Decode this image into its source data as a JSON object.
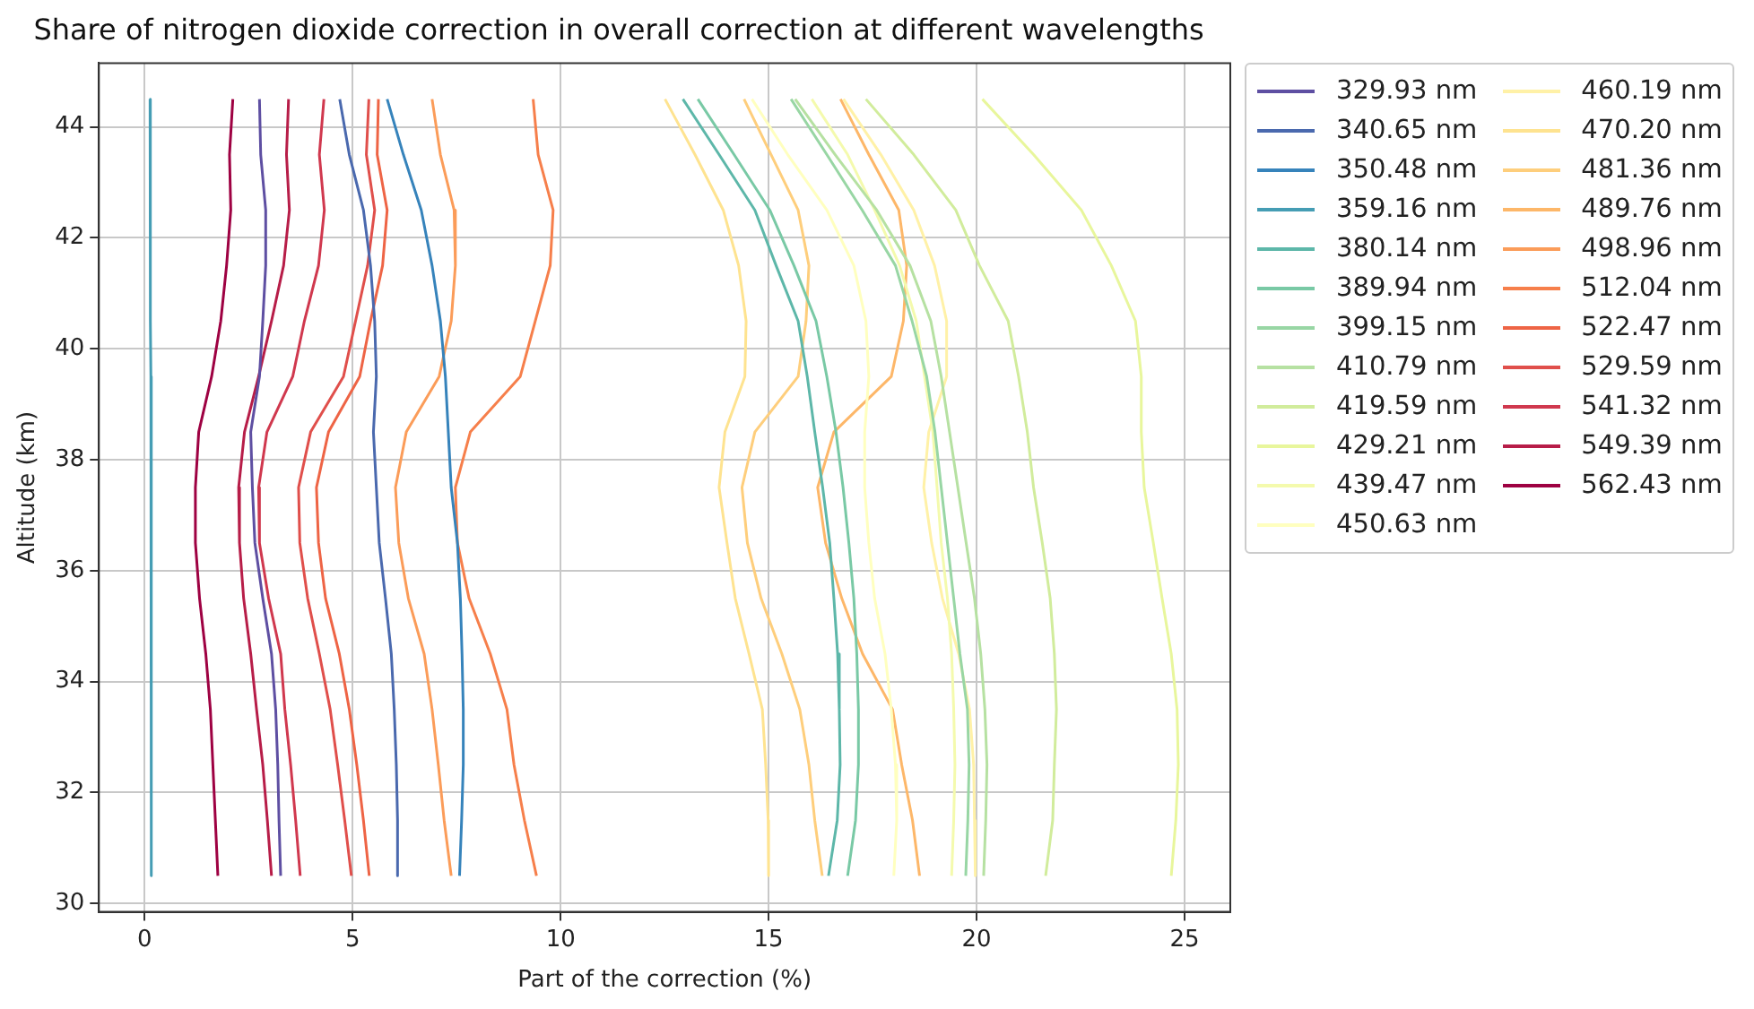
{
  "chart_data": {
    "type": "line",
    "title": "Share of nitrogen dioxide correction in overall correction at different wavelengths",
    "xlabel": "Part of the correction (%)",
    "ylabel": "Altitude (km)",
    "xlim": [
      -1.1,
      26.1
    ],
    "ylim": [
      29.85,
      45.15
    ],
    "xticks": [
      0,
      5,
      10,
      15,
      20,
      25
    ],
    "yticks": [
      30,
      32,
      34,
      36,
      38,
      40,
      42,
      44
    ],
    "grid": true,
    "legend": "right",
    "marker": "none",
    "line_style": "solid",
    "series": [
      {
        "name": "329.93 nm",
        "color": "#5e4fa2",
        "x": [
          2.76,
          2.79,
          2.91,
          2.91,
          2.84,
          2.76,
          2.55,
          2.59,
          2.65,
          2.84,
          3.05,
          3.15,
          3.2,
          3.23,
          3.27
        ],
        "values": [
          44.5,
          43.5,
          42.5,
          41.5,
          40.5,
          39.5,
          38.5,
          37.5,
          36.5,
          35.5,
          34.5,
          33.5,
          32.5,
          31.5,
          30.5
        ]
      },
      {
        "name": "340.65 nm",
        "color": "#4a69ae",
        "x": [
          4.69,
          4.92,
          5.26,
          5.43,
          5.53,
          5.57,
          5.5,
          5.57,
          5.64,
          5.79,
          5.93,
          6.0,
          6.05,
          6.08,
          6.08
        ],
        "values": [
          44.5,
          43.5,
          42.5,
          41.5,
          40.5,
          39.5,
          38.5,
          37.5,
          36.5,
          35.5,
          34.5,
          33.5,
          32.5,
          31.5,
          30.5
        ]
      },
      {
        "name": "350.48 nm",
        "color": "#3683bb",
        "x": [
          5.83,
          6.22,
          6.65,
          6.91,
          7.11,
          7.23,
          7.3,
          7.37,
          7.52,
          7.59,
          7.63,
          7.66,
          7.66,
          7.62,
          7.57
        ],
        "values": [
          44.5,
          43.5,
          42.5,
          41.5,
          40.5,
          39.5,
          38.5,
          37.5,
          36.5,
          35.5,
          34.5,
          33.5,
          32.5,
          31.5,
          30.5
        ]
      },
      {
        "name": "359.16 nm",
        "color": "#459db4",
        "x": [
          0.13,
          0.13,
          0.14,
          0.14,
          0.14,
          0.15,
          0.15,
          0.15,
          0.15,
          0.16,
          0.16,
          0.16,
          0.17,
          0.17,
          0.17
        ],
        "values": [
          44.5,
          43.5,
          42.5,
          41.5,
          40.5,
          39.5,
          38.5,
          37.5,
          36.5,
          35.5,
          34.5,
          33.5,
          32.5,
          31.5,
          30.5
        ]
      },
      {
        "name": "380.14 nm",
        "color": "#5db7a9",
        "x": [
          12.94,
          13.81,
          14.67,
          15.18,
          15.71,
          15.93,
          16.11,
          16.3,
          16.47,
          16.57,
          16.66,
          16.7,
          16.72,
          16.65,
          16.44
        ],
        "values": [
          44.5,
          43.5,
          42.5,
          41.5,
          40.5,
          39.5,
          38.5,
          37.5,
          36.5,
          35.5,
          34.5,
          33.5,
          32.5,
          31.5,
          30.5
        ]
      },
      {
        "name": "389.94 nm",
        "color": "#79c9a5",
        "x": [
          13.3,
          14.17,
          15.03,
          15.61,
          16.14,
          16.4,
          16.62,
          16.79,
          16.93,
          17.05,
          17.12,
          17.16,
          17.16,
          17.09,
          16.9
        ],
        "values": [
          44.5,
          43.5,
          42.5,
          41.5,
          40.5,
          39.5,
          38.5,
          37.5,
          36.5,
          35.5,
          34.5,
          33.5,
          32.5,
          31.5,
          30.5
        ]
      },
      {
        "name": "399.15 nm",
        "color": "#98d6a4",
        "x": [
          15.54,
          16.4,
          17.25,
          18.05,
          18.45,
          18.8,
          19.0,
          19.15,
          19.3,
          19.45,
          19.6,
          19.78,
          19.82,
          19.79,
          19.74
        ],
        "values": [
          44.5,
          43.5,
          42.5,
          41.5,
          40.5,
          39.5,
          38.5,
          37.5,
          36.5,
          35.5,
          34.5,
          33.5,
          32.5,
          31.5,
          30.5
        ]
      },
      {
        "name": "410.79 nm",
        "color": "#b6e1a2",
        "x": [
          15.64,
          16.6,
          17.6,
          18.4,
          18.9,
          19.15,
          19.35,
          19.55,
          19.75,
          19.95,
          20.1,
          20.2,
          20.25,
          20.22,
          20.17
        ],
        "values": [
          44.5,
          43.5,
          42.5,
          41.5,
          40.5,
          39.5,
          38.5,
          37.5,
          36.5,
          35.5,
          34.5,
          33.5,
          32.5,
          31.5,
          30.5
        ]
      },
      {
        "name": "419.59 nm",
        "color": "#d1ec9c",
        "x": [
          17.34,
          18.49,
          19.5,
          20.07,
          20.76,
          21.01,
          21.22,
          21.37,
          21.58,
          21.77,
          21.87,
          21.92,
          21.87,
          21.83,
          21.66
        ],
        "values": [
          44.5,
          43.5,
          42.5,
          41.5,
          40.5,
          39.5,
          38.5,
          37.5,
          36.5,
          35.5,
          34.5,
          33.5,
          32.5,
          31.5,
          30.5
        ]
      },
      {
        "name": "429.21 nm",
        "color": "#e8f69c",
        "x": [
          20.14,
          21.37,
          22.52,
          23.24,
          23.82,
          23.96,
          23.96,
          24.03,
          24.25,
          24.46,
          24.68,
          24.82,
          24.85,
          24.79,
          24.68
        ],
        "values": [
          44.5,
          43.5,
          42.5,
          41.5,
          40.5,
          39.5,
          38.5,
          37.5,
          36.5,
          35.5,
          34.5,
          33.5,
          32.5,
          31.5,
          30.5
        ]
      },
      {
        "name": "439.47 nm",
        "color": "#f4faad",
        "x": [
          16.04,
          16.9,
          17.55,
          18.15,
          18.55,
          18.75,
          18.95,
          19.05,
          19.15,
          19.3,
          19.4,
          19.45,
          19.48,
          19.45,
          19.4
        ],
        "values": [
          44.5,
          43.5,
          42.5,
          41.5,
          40.5,
          39.5,
          38.5,
          37.5,
          36.5,
          35.5,
          34.5,
          33.5,
          32.5,
          31.5,
          30.5
        ]
      },
      {
        "name": "450.63 nm",
        "color": "#ffffbf",
        "x": [
          14.6,
          15.46,
          16.4,
          17.05,
          17.34,
          17.41,
          17.31,
          17.31,
          17.41,
          17.55,
          17.8,
          17.95,
          18.05,
          18.08,
          18.01
        ],
        "values": [
          44.5,
          43.5,
          42.5,
          41.5,
          40.5,
          39.5,
          38.5,
          37.5,
          36.5,
          35.5,
          34.5,
          33.5,
          32.5,
          31.5,
          30.5
        ]
      },
      {
        "name": "460.19 nm",
        "color": "#fff1a7",
        "x": [
          16.8,
          17.7,
          18.49,
          18.99,
          19.28,
          19.28,
          18.85,
          18.73,
          18.92,
          19.18,
          19.57,
          19.83,
          19.93,
          19.95,
          19.97
        ],
        "values": [
          44.5,
          43.5,
          42.5,
          41.5,
          40.5,
          39.5,
          38.5,
          37.5,
          36.5,
          35.5,
          34.5,
          33.5,
          32.5,
          31.5,
          30.5
        ]
      },
      {
        "name": "470.20 nm",
        "color": "#fee390",
        "x": [
          12.51,
          13.23,
          13.91,
          14.28,
          14.46,
          14.43,
          13.95,
          13.81,
          14.0,
          14.2,
          14.53,
          14.85,
          14.93,
          14.99,
          15.0
        ],
        "values": [
          44.5,
          43.5,
          42.5,
          41.5,
          40.5,
          39.5,
          38.5,
          37.5,
          36.5,
          35.5,
          34.5,
          33.5,
          32.5,
          31.5,
          30.5
        ]
      },
      {
        "name": "481.36 nm",
        "color": "#fece7c",
        "x": [
          14.41,
          15.06,
          15.71,
          15.97,
          15.9,
          15.71,
          14.67,
          14.36,
          14.49,
          14.82,
          15.32,
          15.75,
          15.97,
          16.11,
          16.29
        ],
        "values": [
          44.5,
          43.5,
          42.5,
          41.5,
          40.5,
          39.5,
          38.5,
          37.5,
          36.5,
          35.5,
          34.5,
          33.5,
          32.5,
          31.5,
          30.5
        ]
      },
      {
        "name": "489.76 nm",
        "color": "#fdb769",
        "x": [
          16.73,
          17.41,
          18.13,
          18.32,
          18.24,
          17.95,
          16.57,
          16.18,
          16.37,
          16.76,
          17.26,
          17.98,
          18.2,
          18.46,
          18.63
        ],
        "values": [
          44.5,
          43.5,
          42.5,
          41.5,
          40.5,
          39.5,
          38.5,
          37.5,
          36.5,
          35.5,
          34.5,
          33.5,
          32.5,
          31.5,
          30.5
        ]
      },
      {
        "name": "498.96 nm",
        "color": "#fb9c59",
        "x": [
          6.91,
          7.11,
          7.44,
          7.47,
          7.37,
          7.08,
          6.29,
          6.03,
          6.11,
          6.34,
          6.72,
          6.91,
          7.06,
          7.2,
          7.37
        ],
        "values": [
          44.5,
          43.5,
          42.5,
          41.5,
          40.5,
          39.5,
          38.5,
          37.5,
          36.5,
          35.5,
          34.5,
          33.5,
          32.5,
          31.5,
          30.5
        ]
      },
      {
        "name": "512.04 nm",
        "color": "#f67f4b",
        "x": [
          9.34,
          9.46,
          9.82,
          9.75,
          9.39,
          9.03,
          7.83,
          7.47,
          7.52,
          7.8,
          8.31,
          8.71,
          8.88,
          9.13,
          9.42
        ],
        "values": [
          44.5,
          43.5,
          42.5,
          41.5,
          40.5,
          39.5,
          38.5,
          37.5,
          36.5,
          35.5,
          34.5,
          33.5,
          32.5,
          31.5,
          30.5
        ]
      },
      {
        "name": "522.47 nm",
        "color": "#ee6445",
        "x": [
          5.62,
          5.59,
          5.83,
          5.72,
          5.43,
          5.17,
          4.42,
          4.13,
          4.18,
          4.35,
          4.68,
          4.92,
          5.1,
          5.26,
          5.4
        ],
        "values": [
          44.5,
          43.5,
          42.5,
          41.5,
          40.5,
          39.5,
          38.5,
          37.5,
          36.5,
          35.5,
          34.5,
          33.5,
          32.5,
          31.5,
          30.5
        ]
      },
      {
        "name": "529.59 nm",
        "color": "#e04f4b",
        "x": [
          5.39,
          5.33,
          5.53,
          5.36,
          5.07,
          4.78,
          3.99,
          3.7,
          3.73,
          3.92,
          4.2,
          4.46,
          4.64,
          4.81,
          4.97
        ],
        "values": [
          44.5,
          43.5,
          42.5,
          41.5,
          40.5,
          39.5,
          38.5,
          37.5,
          36.5,
          35.5,
          34.5,
          33.5,
          32.5,
          31.5,
          30.5
        ]
      },
      {
        "name": "541.32 nm",
        "color": "#d0384e",
        "x": [
          4.31,
          4.2,
          4.32,
          4.18,
          3.84,
          3.56,
          2.94,
          2.74,
          2.76,
          2.98,
          3.27,
          3.37,
          3.51,
          3.63,
          3.74
        ],
        "values": [
          44.5,
          43.5,
          42.5,
          41.5,
          40.5,
          39.5,
          38.5,
          37.5,
          36.5,
          35.5,
          34.5,
          33.5,
          32.5,
          31.5,
          30.5
        ]
      },
      {
        "name": "549.39 nm",
        "color": "#b71d48",
        "x": [
          3.46,
          3.41,
          3.48,
          3.34,
          3.05,
          2.74,
          2.4,
          2.26,
          2.28,
          2.38,
          2.55,
          2.69,
          2.84,
          2.95,
          3.05
        ],
        "values": [
          44.5,
          43.5,
          42.5,
          41.5,
          40.5,
          39.5,
          38.5,
          37.5,
          36.5,
          35.5,
          34.5,
          33.5,
          32.5,
          31.5,
          30.5
        ]
      },
      {
        "name": "562.43 nm",
        "color": "#9e0142",
        "x": [
          2.12,
          2.04,
          2.07,
          1.97,
          1.83,
          1.61,
          1.3,
          1.22,
          1.22,
          1.32,
          1.47,
          1.58,
          1.64,
          1.7,
          1.76
        ],
        "values": [
          44.5,
          43.5,
          42.5,
          41.5,
          40.5,
          39.5,
          38.5,
          37.5,
          36.5,
          35.5,
          34.5,
          33.5,
          32.5,
          31.5,
          30.5
        ]
      }
    ]
  }
}
